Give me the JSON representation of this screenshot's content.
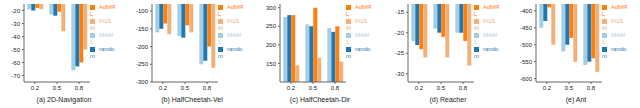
{
  "chart_data": [
    {
      "type": "bar",
      "title": "(a) 2D-Navigation",
      "categories": [
        "0.2",
        "0.5",
        "0.8"
      ],
      "legend": "upper right",
      "series": [
        {
          "name": "MAML",
          "color": "#a6cee3",
          "values": [
            -19,
            -23,
            -66
          ]
        },
        {
          "name": "random",
          "color": "#1f78b4",
          "values": [
            -20,
            -24,
            -63
          ]
        },
        {
          "name": "AdMRL",
          "color": "#ff7f0e",
          "values": [
            -18,
            -21,
            -60
          ]
        },
        {
          "name": "FGSM",
          "color": "#f0b27a",
          "values": [
            -19,
            -36,
            -50
          ]
        }
      ],
      "ylim": [
        -75,
        -15
      ],
      "yticks": [
        -70,
        -60,
        -50,
        -40,
        -30,
        -20
      ]
    },
    {
      "type": "bar",
      "title": "(b) HalfCheetah-Vel",
      "categories": [
        "0.2",
        "0.5",
        "0.8"
      ],
      "legend": "upper right",
      "series": [
        {
          "name": "MAML",
          "color": "#a6cee3",
          "values": [
            -160,
            -170,
            -250
          ]
        },
        {
          "name": "random",
          "color": "#1f78b4",
          "values": [
            -150,
            -175,
            -240
          ]
        },
        {
          "name": "AdMRL",
          "color": "#ff7f0e",
          "values": [
            -135,
            -140,
            -200
          ]
        },
        {
          "name": "FGSM",
          "color": "#f0b27a",
          "values": [
            -165,
            -160,
            -260
          ]
        }
      ],
      "ylim": [
        -300,
        -80
      ],
      "yticks": [
        -300,
        -250,
        -200,
        -150,
        -100
      ]
    },
    {
      "type": "bar",
      "title": "(c) HalfCheetah-Dir",
      "categories": [
        "0.2",
        "0.5",
        "0.8"
      ],
      "legend": "upper right",
      "series": [
        {
          "name": "MAML",
          "color": "#a6cee3",
          "values": [
            275,
            255,
            245
          ]
        },
        {
          "name": "random",
          "color": "#1f78b4",
          "values": [
            280,
            250,
            235
          ]
        },
        {
          "name": "AdMRL",
          "color": "#ff7f0e",
          "values": [
            280,
            300,
            250
          ]
        },
        {
          "name": "FGSM",
          "color": "#f0b27a",
          "values": [
            145,
            165,
            155
          ]
        }
      ],
      "ylim": [
        100,
        310
      ],
      "yticks": [
        150,
        200,
        250,
        300
      ]
    },
    {
      "type": "bar",
      "title": "(d) Reacher",
      "categories": [
        "0.2",
        "0.5",
        "0.8"
      ],
      "legend": "upper right",
      "series": [
        {
          "name": "MAML",
          "color": "#a6cee3",
          "values": [
            -22,
            -19,
            -20
          ]
        },
        {
          "name": "random",
          "color": "#1f78b4",
          "values": [
            -23,
            -20,
            -20
          ]
        },
        {
          "name": "AdMRL",
          "color": "#ff7f0e",
          "values": [
            -24,
            -21,
            -22
          ]
        },
        {
          "name": "FGSM",
          "color": "#f0b27a",
          "values": [
            -26,
            -26,
            -28
          ]
        }
      ],
      "ylim": [
        -32,
        -13
      ],
      "yticks": [
        -30,
        -25,
        -20,
        -15
      ]
    },
    {
      "type": "bar",
      "title": "(e) Ant",
      "categories": [
        "0.2",
        "0.5",
        "0.8"
      ],
      "legend": "upper right",
      "series": [
        {
          "name": "MAML",
          "color": "#a6cee3",
          "values": [
            -450,
            -520,
            -560
          ]
        },
        {
          "name": "random",
          "color": "#1f78b4",
          "values": [
            -430,
            -500,
            -550
          ]
        },
        {
          "name": "AdMRL",
          "color": "#ff7f0e",
          "values": [
            -390,
            -480,
            -540
          ]
        },
        {
          "name": "FGSM",
          "color": "#f0b27a",
          "values": [
            -500,
            -550,
            -580
          ]
        }
      ],
      "ylim": [
        -610,
        -380
      ],
      "yticks": [
        -600,
        -550,
        -500,
        -450,
        -400
      ]
    }
  ]
}
